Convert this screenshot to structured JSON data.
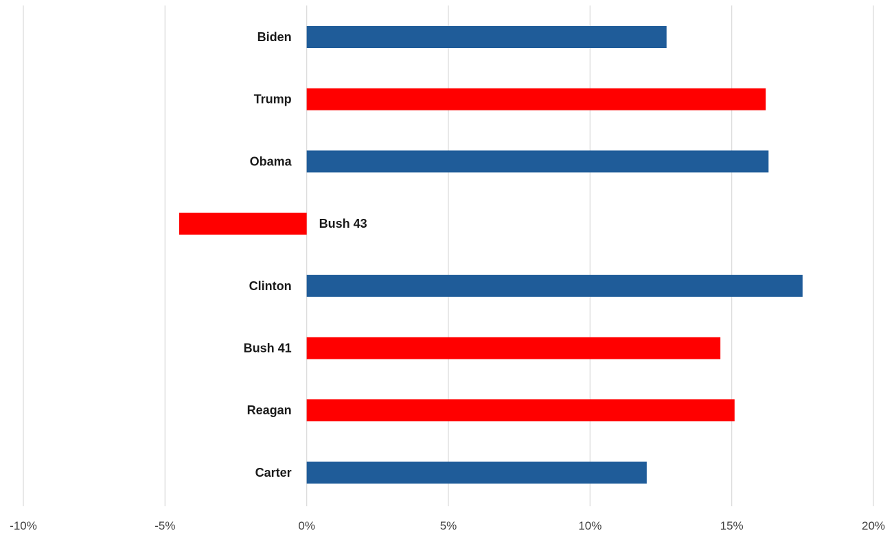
{
  "chart_data": {
    "type": "bar",
    "orientation": "horizontal",
    "categories": [
      "Biden",
      "Trump",
      "Obama",
      "Bush 43",
      "Clinton",
      "Bush 41",
      "Reagan",
      "Carter"
    ],
    "values": [
      12.7,
      16.2,
      16.3,
      -4.5,
      17.5,
      14.6,
      15.1,
      12.0
    ],
    "bar_colors": [
      "#1f5c99",
      "#ff0000",
      "#1f5c99",
      "#ff0000",
      "#1f5c99",
      "#ff0000",
      "#ff0000",
      "#1f5c99"
    ],
    "xlim": [
      -10,
      20
    ],
    "x_ticks": [
      -10,
      -5,
      0,
      5,
      10,
      15,
      20
    ],
    "x_tick_labels": [
      "-10%",
      "-5%",
      "0%",
      "5%",
      "10%",
      "15%",
      "20%"
    ],
    "grid": "vertical",
    "legend": "none",
    "title": "",
    "xlabel": "",
    "ylabel": ""
  }
}
